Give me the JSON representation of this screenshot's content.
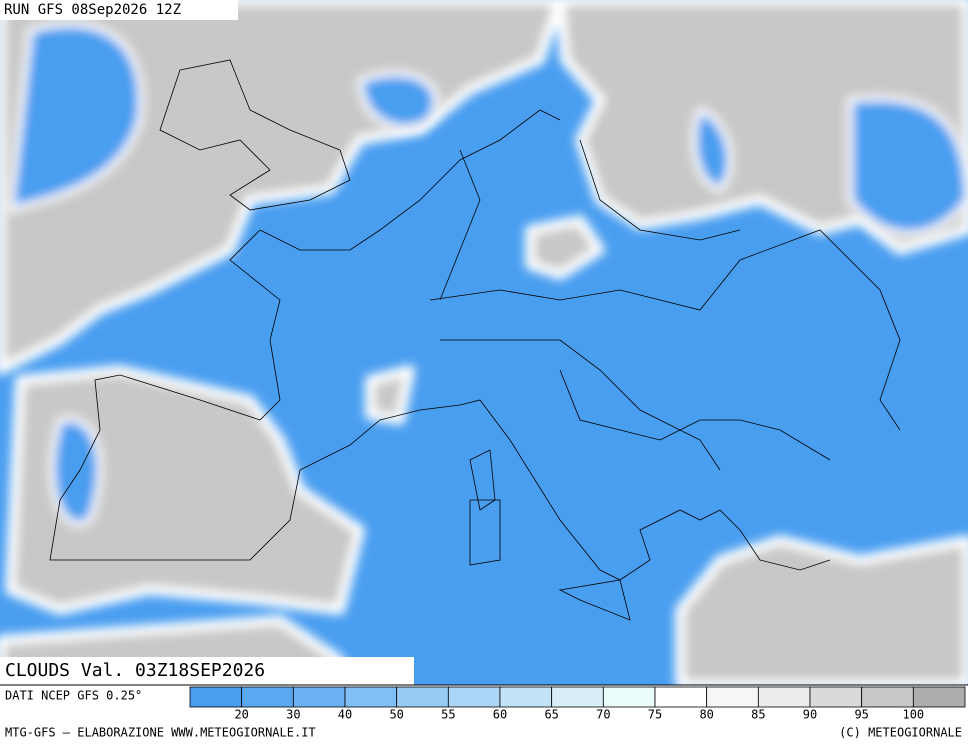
{
  "header": {
    "run": "RUN GFS 08Sep2026 12Z",
    "field": "CLOUDS Val. 03Z18SEP2026"
  },
  "legend": {
    "source": "DATI NCEP GFS 0.25°",
    "levels": [
      20,
      30,
      40,
      50,
      55,
      60,
      65,
      70,
      75,
      80,
      85,
      90,
      95,
      100
    ],
    "colors": [
      "#4a9ef0",
      "#5aa8f2",
      "#6ab2f4",
      "#80bef5",
      "#98caf6",
      "#acd6f7",
      "#c2e2f8",
      "#d8eef9",
      "#eafcfc",
      "#ffffff",
      "#f6f6f6",
      "#ececec",
      "#dadada",
      "#c8c8c8",
      "#adadad"
    ]
  },
  "footer": {
    "left": "MTG-GFS – ELABORAZIONE WWW.METEOGIORNALE.IT",
    "right": "(C) METEOGIORNALE"
  }
}
